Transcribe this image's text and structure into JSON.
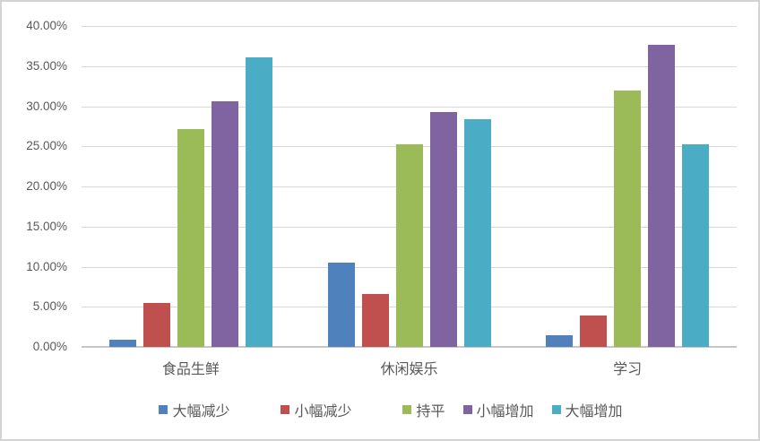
{
  "colors": {
    "text": "#595959",
    "gridline": "#D9D9D9",
    "axis_line": "#C6C6C6",
    "border": "#D3D3D3",
    "background": "#FFFFFF"
  },
  "chart_data": {
    "type": "bar",
    "title": "",
    "xlabel": "",
    "ylabel": "",
    "grid": true,
    "legend_position": "bottom",
    "categories": [
      "食品生鲜",
      "休闲娱乐",
      "学习"
    ],
    "series": [
      {
        "name": "大幅减少",
        "color": "#4F81BD",
        "values": [
          0.9,
          10.5,
          1.4
        ]
      },
      {
        "name": "小幅减少",
        "color": "#C0504D",
        "values": [
          5.5,
          6.6,
          3.9
        ]
      },
      {
        "name": "持平",
        "color": "#9BBB59",
        "values": [
          27.1,
          25.2,
          32.0
        ]
      },
      {
        "name": "小幅增加",
        "color": "#8064A2",
        "values": [
          30.6,
          29.3,
          37.6
        ]
      },
      {
        "name": "大幅增加",
        "color": "#4BACC6",
        "values": [
          36.1,
          28.4,
          25.2
        ]
      }
    ],
    "y_axis": {
      "min": 0,
      "max": 40,
      "step": 5,
      "unit": "%",
      "tick_labels": [
        "0.00%",
        "5.00%",
        "10.00%",
        "15.00%",
        "20.00%",
        "25.00%",
        "30.00%",
        "35.00%",
        "40.00%"
      ]
    },
    "ylim": [
      0,
      40
    ]
  }
}
